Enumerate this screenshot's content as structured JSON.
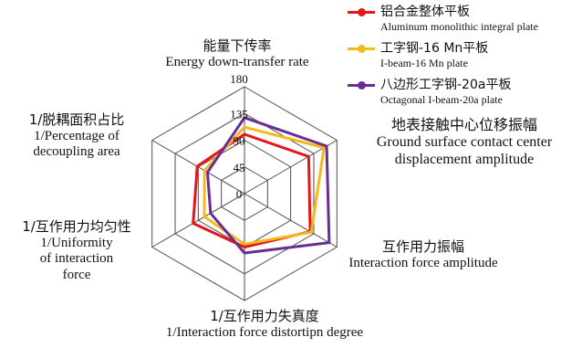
{
  "chart_data": {
    "type": "radar",
    "axis_range": [
      0,
      180
    ],
    "ticks": [
      0,
      45,
      90,
      135,
      180
    ],
    "tick_labels": [
      "0",
      "45",
      "90",
      "135",
      "180"
    ],
    "axes": [
      {
        "cn": "能量下传率",
        "en": "Energy down-transfer rate"
      },
      {
        "cn": "地表接触中心位移振幅",
        "en1": "Ground surface contact center",
        "en2": "displacement amplitude"
      },
      {
        "cn": "互作用力振幅",
        "en": "Interaction force amplitude"
      },
      {
        "cn": "1/互作用力失真度",
        "en": "1/Interaction force  distortipn degree"
      },
      {
        "cn": "1/互作用力均匀性",
        "en1": "1/Uniformity",
        "en2": "of interaction",
        "en3": "force"
      },
      {
        "cn": "1/脱耦面积占比",
        "en1": "1/Percentage of",
        "en2": "decoupling area"
      }
    ],
    "series": [
      {
        "name_cn": "铝合金整体平板",
        "name_en": "Aluminum monolithic integral plate",
        "color": "#e8141b",
        "values": [
          100,
          125,
          128,
          90,
          100,
          92
        ]
      },
      {
        "name_cn": "工字钢-16 Mn平板",
        "name_en": "I-beam-16 Mn plate",
        "color": "#f5b91c",
        "values": [
          112,
          155,
          130,
          85,
          78,
          78
        ]
      },
      {
        "name_cn": "八边形工字钢-20a平板",
        "name_en": "Octagonal I-beam-20a plate",
        "color": "#6a2d91",
        "values": [
          128,
          160,
          165,
          100,
          66,
          72
        ]
      }
    ],
    "grid": true,
    "legend": "top-right"
  }
}
